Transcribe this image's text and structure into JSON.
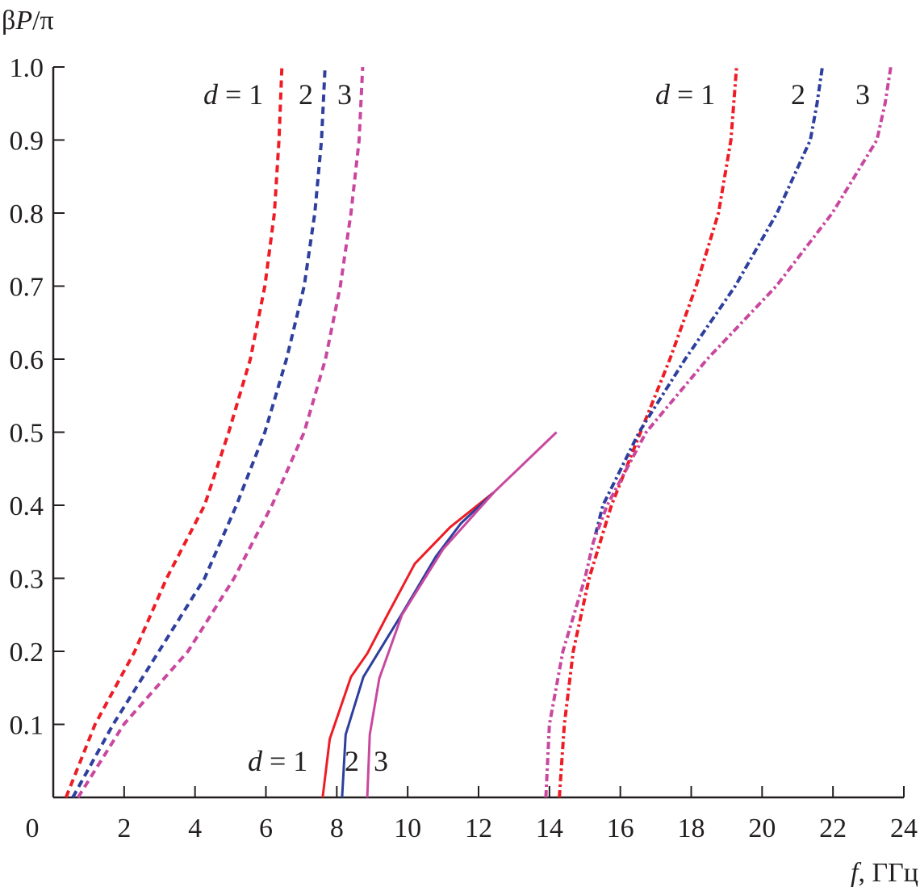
{
  "chart_data": {
    "type": "line",
    "ylabel": "βP/π",
    "xlabel": "f, ГГц",
    "xlim": [
      0,
      24
    ],
    "ylim": [
      0,
      1.0
    ],
    "xticks": [
      "0",
      "2",
      "4",
      "6",
      "8",
      "10",
      "12",
      "14",
      "16",
      "18",
      "20",
      "22",
      "24"
    ],
    "yticks": [
      "0.1",
      "0.2",
      "0.3",
      "0.4",
      "0.5",
      "0.6",
      "0.7",
      "0.8",
      "0.9",
      "1.0"
    ],
    "grid": false,
    "colors": {
      "d1": "#ee1c25",
      "d2": "#2e3f9e",
      "d3": "#c9489f"
    },
    "annotations": [
      {
        "group": "dashed",
        "labels": [
          "d = 1",
          "2",
          "3"
        ]
      },
      {
        "group": "solid",
        "labels": [
          "d = 1",
          "2",
          "3"
        ]
      },
      {
        "group": "dashdot",
        "labels": [
          "d = 1",
          "2",
          "3"
        ]
      }
    ],
    "series": [
      {
        "style": "dashed",
        "d": 1,
        "color": "#ee1c25",
        "x": [
          0.36,
          1.18,
          2.3,
          3.2,
          4.27,
          4.95,
          5.56,
          5.97,
          6.24,
          6.37,
          6.45
        ],
        "y": [
          0,
          0.1,
          0.2,
          0.3,
          0.4,
          0.5,
          0.6,
          0.7,
          0.8,
          0.9,
          1.0
        ]
      },
      {
        "style": "dashed",
        "d": 2,
        "color": "#2e3f9e",
        "x": [
          0.55,
          1.69,
          2.98,
          4.27,
          5.17,
          5.97,
          6.58,
          7.08,
          7.38,
          7.57,
          7.67
        ],
        "y": [
          0,
          0.1,
          0.2,
          0.3,
          0.4,
          0.5,
          0.6,
          0.7,
          0.8,
          0.9,
          1.0
        ]
      },
      {
        "style": "dashed",
        "d": 3,
        "color": "#c9489f",
        "x": [
          0.7,
          1.99,
          3.8,
          5.1,
          6.17,
          7.08,
          7.68,
          8.1,
          8.4,
          8.63,
          8.73
        ],
        "y": [
          0,
          0.1,
          0.2,
          0.3,
          0.4,
          0.5,
          0.6,
          0.7,
          0.8,
          0.9,
          1.0
        ]
      },
      {
        "style": "solid",
        "d": 1,
        "color": "#ee1c25",
        "x": [
          7.6,
          7.8,
          8.4,
          8.86,
          9.43,
          10.2,
          11.2,
          12.44
        ],
        "y": [
          0,
          0.08,
          0.165,
          0.197,
          0.25,
          0.32,
          0.37,
          0.418
        ]
      },
      {
        "style": "solid",
        "d": 2,
        "color": "#2e3f9e",
        "x": [
          8.15,
          8.25,
          8.75,
          9.82,
          10.8,
          11.5,
          12.44
        ],
        "y": [
          0,
          0.086,
          0.165,
          0.25,
          0.33,
          0.375,
          0.418
        ]
      },
      {
        "style": "solid",
        "d": 3,
        "color": "#c9489f",
        "x": [
          8.86,
          8.93,
          9.2,
          9.84,
          11.0,
          12.44,
          14.2
        ],
        "y": [
          0,
          0.086,
          0.163,
          0.25,
          0.34,
          0.418,
          0.5
        ]
      },
      {
        "style": "dashdot",
        "d": 1,
        "color": "#ee1c25",
        "x": [
          14.28,
          14.42,
          14.67,
          15.12,
          15.75,
          16.57,
          17.4,
          18.14,
          18.77,
          19.12,
          19.28
        ],
        "y": [
          0,
          0.1,
          0.2,
          0.3,
          0.4,
          0.5,
          0.6,
          0.7,
          0.8,
          0.9,
          1.0
        ]
      },
      {
        "style": "dashdot",
        "d": 2,
        "color": "#2e3f9e",
        "x": [
          15.3,
          15.51,
          16.02,
          16.53,
          17.83,
          19.24,
          20.42,
          21.36,
          21.55,
          21.7
        ],
        "y": [
          0.36,
          0.4,
          0.45,
          0.5,
          0.6,
          0.7,
          0.8,
          0.9,
          0.95,
          1.0
        ]
      },
      {
        "style": "dashdot",
        "d": 3,
        "color": "#c9489f",
        "x": [
          13.9,
          14.0,
          14.38,
          15.0,
          15.24,
          15.63,
          16.73,
          18.45,
          20.4,
          21.98,
          23.24,
          23.47,
          23.63
        ],
        "y": [
          0,
          0.1,
          0.2,
          0.3,
          0.35,
          0.4,
          0.5,
          0.6,
          0.7,
          0.8,
          0.9,
          0.95,
          1.0
        ]
      }
    ]
  }
}
